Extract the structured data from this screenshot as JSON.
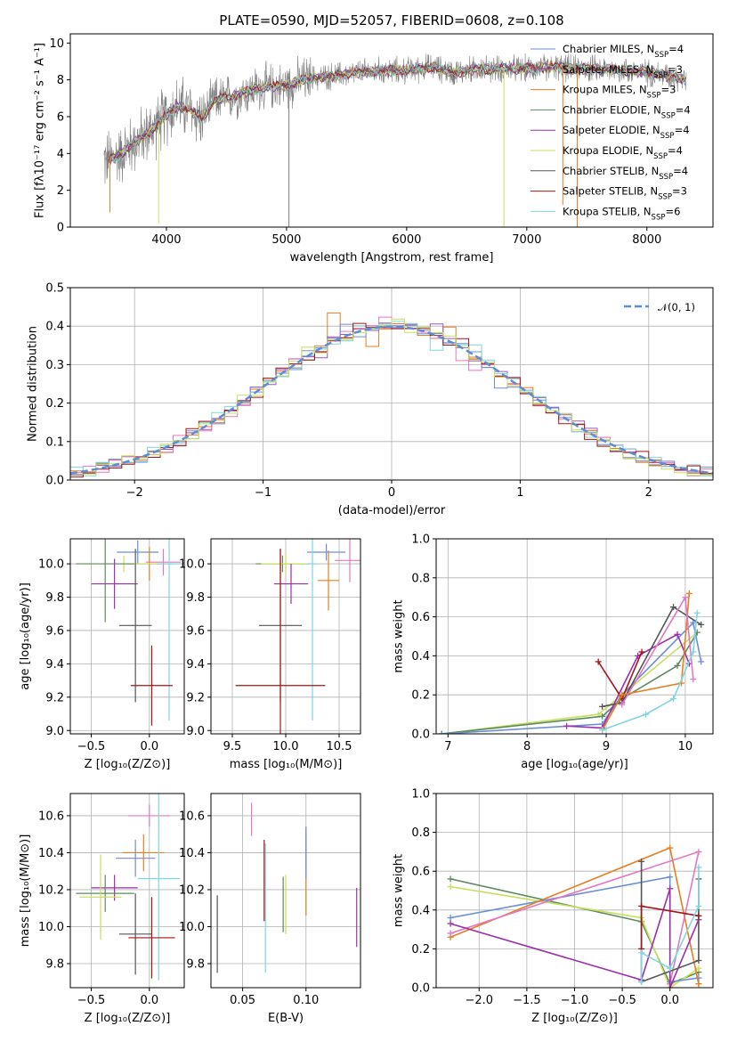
{
  "title": "PLATE=0590, MJD=52057, FIBERID=0608, z=0.108",
  "colors": {
    "miles_chabrier": "#6b8fd6",
    "miles_salpeter": "#9b59b6",
    "miles_kroupa": "#e67e22",
    "elodie_chabrier": "#5d8a5d",
    "elodie_salpeter": "#9b2fae",
    "elodie_kroupa": "#c7e05a",
    "stelib_chabrier": "#555555",
    "stelib_salpeter": "#a31515",
    "stelib_kroupa": "#7ed6df",
    "pink": "#e377c2",
    "data_gray": "#808080",
    "gaussian": "#5b8ed6"
  },
  "chart_data": [
    {
      "type": "line",
      "panel": "spectrum",
      "xlabel": "wavelength [Angstrom, rest frame]",
      "ylabel": "Flux [fλ10⁻¹⁷ erg cm⁻² s⁻¹ A⁻¹]",
      "xlim": [
        3200,
        8550
      ],
      "ylim": [
        0,
        10.5
      ],
      "xticks": [
        "4000",
        "5000",
        "6000",
        "7000",
        "8000"
      ],
      "yticks": [
        "0",
        "2",
        "4",
        "6",
        "8",
        "10"
      ],
      "grid": false,
      "legend_position": "top-right",
      "legend": [
        {
          "label": "Chabrier MILES, N",
          "sub": "SSP",
          "n": "=4",
          "color": "#6b8fd6"
        },
        {
          "label": "Salpeter MILES, N",
          "sub": "SSP",
          "n": "=3",
          "color": "#9b59b6"
        },
        {
          "label": "Kroupa MILES, N",
          "sub": "SSP",
          "n": "=3",
          "color": "#e67e22"
        },
        {
          "label": "Chabrier ELODIE, N",
          "sub": "SSP",
          "n": "=4",
          "color": "#5d8a5d"
        },
        {
          "label": "Salpeter ELODIE, N",
          "sub": "SSP",
          "n": "=4",
          "color": "#9b2fae"
        },
        {
          "label": "Kroupa ELODIE, N",
          "sub": "SSP",
          "n": "=4",
          "color": "#c7e05a"
        },
        {
          "label": "Chabrier STELIB, N",
          "sub": "SSP",
          "n": "=4",
          "color": "#555555"
        },
        {
          "label": "Salpeter STELIB, N",
          "sub": "SSP",
          "n": "=3",
          "color": "#a31515"
        },
        {
          "label": "Kroupa STELIB, N",
          "sub": "SSP",
          "n": "=6",
          "color": "#7ed6df"
        }
      ],
      "continuum_x": [
        3500,
        3600,
        3700,
        3800,
        3900,
        4000,
        4100,
        4200,
        4300,
        4400,
        4500,
        4600,
        4800,
        5000,
        5200,
        5400,
        5600,
        5800,
        6000,
        6200,
        6400,
        6600,
        6800,
        7000,
        7200,
        7400,
        7600,
        7800,
        8000,
        8200,
        8350
      ],
      "continuum_y": [
        3.6,
        3.9,
        4.4,
        4.9,
        5.4,
        6.1,
        6.6,
        6.3,
        5.9,
        6.9,
        7.0,
        7.2,
        7.6,
        7.7,
        8.1,
        8.2,
        8.4,
        8.5,
        8.5,
        8.7,
        8.4,
        8.6,
        8.6,
        8.6,
        8.7,
        8.6,
        8.6,
        8.5,
        8.4,
        8.2,
        8.0
      ],
      "spikes_down": [
        {
          "x": 3530,
          "y": 0.8,
          "color": "#e67e22"
        },
        {
          "x": 3935,
          "y": 0.2,
          "color": "#c7e05a"
        },
        {
          "x": 5020,
          "y": 0,
          "color": "#808080"
        },
        {
          "x": 6810,
          "y": 0,
          "color": "#c7e05a"
        },
        {
          "x": 7300,
          "y": 1.2,
          "color": "#e67e22"
        },
        {
          "x": 7420,
          "y": 0,
          "color": "#e67e22"
        }
      ]
    },
    {
      "type": "line",
      "panel": "residual-histogram",
      "xlabel": "(data-model)/error",
      "ylabel": "Normed distribution",
      "xlim": [
        -2.5,
        2.5
      ],
      "ylim": [
        0,
        0.5
      ],
      "xticks": [
        "−2",
        "−1",
        "0",
        "1",
        "2"
      ],
      "yticks": [
        "0.0",
        "0.1",
        "0.2",
        "0.3",
        "0.4",
        "0.5"
      ],
      "grid": true,
      "legend_position": "top-right",
      "legend": [
        {
          "label": "𝒩(0, 1)",
          "color": "#5b8ed6"
        }
      ],
      "bin_width": 0.1,
      "bin_start": -2.5,
      "histograms": [
        {
          "color": "#e67e22",
          "bumps": [
            [
              -0.45,
              0.08
            ],
            [
              -0.15,
              -0.04
            ],
            [
              0.45,
              0.03
            ]
          ]
        },
        {
          "color": "#9b59b6",
          "bumps": [
            [
              0.35,
              0.02
            ],
            [
              -0.55,
              -0.03
            ],
            [
              1.25,
              0.02
            ]
          ]
        },
        {
          "color": "#e377c2",
          "bumps": [
            [
              -0.05,
              0.02
            ],
            [
              0.6,
              -0.03
            ],
            [
              -1.25,
              -0.02
            ]
          ]
        },
        {
          "color": "#6b8fd6",
          "bumps": [
            [
              0.85,
              -0.04
            ],
            [
              -0.35,
              0.02
            ],
            [
              1.55,
              0.015
            ]
          ]
        },
        {
          "color": "#7ed6df",
          "bumps": [
            [
              0.65,
              0.035
            ],
            [
              -0.85,
              -0.02
            ],
            [
              0.35,
              -0.03
            ]
          ]
        },
        {
          "color": "#a31515",
          "bumps": [
            [
              0.55,
              0.03
            ],
            [
              -1.05,
              -0.025
            ],
            [
              -0.25,
              0.02
            ]
          ]
        },
        {
          "color": "#c7e05a",
          "bumps": [
            [
              0.05,
              0.03
            ],
            [
              -0.65,
              0.02
            ],
            [
              1.85,
              -0.015
            ]
          ]
        }
      ],
      "gaussian": {
        "mu": 0,
        "sigma": 1
      }
    },
    {
      "type": "scatter",
      "panel": "Z-age",
      "xlabel": "Z [log₁₀(Z/Z⊙)]",
      "ylabel": "age  [log₁₀(age/yr)]",
      "xlim": [
        -0.68,
        0.3
      ],
      "ylim": [
        8.98,
        10.15
      ],
      "xticks": [
        "−0.5",
        "0.0"
      ],
      "yticks": [
        "9.0",
        "9.2",
        "9.4",
        "9.6",
        "9.8",
        "10.0"
      ],
      "grid": true,
      "points": [
        {
          "x": -0.1,
          "y": 10.07,
          "xerr": 0.18,
          "yerr": 0.07,
          "color": "#6b8fd6"
        },
        {
          "x": 0.12,
          "y": 10.01,
          "xerr": 0.15,
          "yerr": 0.08,
          "color": "#e377c2"
        },
        {
          "x": 0.0,
          "y": 10.0,
          "xerr": 0.2,
          "yerr": 0.1,
          "color": "#e67e22"
        },
        {
          "x": -0.22,
          "y": 10.0,
          "xerr": 0.35,
          "yerr": 0.05,
          "color": "#c7e05a"
        },
        {
          "x": -0.38,
          "y": 10.0,
          "xerr": 0.25,
          "yerr": 0.35,
          "color": "#5d8a5d"
        },
        {
          "x": -0.3,
          "y": 9.88,
          "xerr": 0.2,
          "yerr": 0.15,
          "color": "#9b2fae"
        },
        {
          "x": 0.17,
          "y": 10.0,
          "xerr": 0.1,
          "yerr": 0.94,
          "color": "#7ed6df"
        },
        {
          "x": -0.12,
          "y": 9.63,
          "xerr": 0.14,
          "yerr": 0.46,
          "color": "#555555"
        },
        {
          "x": 0.02,
          "y": 9.27,
          "xerr": 0.18,
          "yerr": 0.24,
          "color": "#a31515"
        }
      ]
    },
    {
      "type": "scatter",
      "panel": "mass-age",
      "xlabel": "mass [log₁₀(M/M⊙)]",
      "ylabel": "",
      "xlim": [
        9.3,
        10.7
      ],
      "ylim": [
        8.98,
        10.15
      ],
      "xticks": [
        "9.5",
        "10.0",
        "10.5"
      ],
      "yticks": [
        "9.0",
        "9.2",
        "9.4",
        "9.6",
        "9.8",
        "10.0"
      ],
      "grid": true,
      "points": [
        {
          "x": 10.38,
          "y": 10.07,
          "xerr": 0.18,
          "yerr": 0.05,
          "color": "#6b8fd6"
        },
        {
          "x": 10.6,
          "y": 10.02,
          "xerr": 0.14,
          "yerr": 0.13,
          "color": "#e377c2"
        },
        {
          "x": 10.4,
          "y": 9.9,
          "xerr": 0.1,
          "yerr": 0.18,
          "color": "#e67e22"
        },
        {
          "x": 9.97,
          "y": 10.0,
          "xerr": 0.25,
          "yerr": 0.05,
          "color": "#5d8a5d"
        },
        {
          "x": 10.0,
          "y": 10.0,
          "xerr": 0.23,
          "yerr": 0.06,
          "color": "#c7e05a"
        },
        {
          "x": 10.05,
          "y": 9.88,
          "xerr": 0.16,
          "yerr": 0.12,
          "color": "#9b2fae"
        },
        {
          "x": 10.25,
          "y": 10.0,
          "xerr": 0.05,
          "yerr": 0.94,
          "color": "#7ed6df"
        },
        {
          "x": 9.95,
          "y": 9.63,
          "xerr": 0.2,
          "yerr": 0.46,
          "color": "#555555"
        },
        {
          "x": 9.95,
          "y": 9.27,
          "xerr": 0.42,
          "yerr": 0.82,
          "color": "#a31515"
        }
      ]
    },
    {
      "type": "line",
      "panel": "age-weight",
      "xlabel": "age  [log₁₀(age/yr)]",
      "ylabel": "mass weight",
      "xlim": [
        6.85,
        10.35
      ],
      "ylim": [
        0,
        1
      ],
      "xticks": [
        "7",
        "8",
        "9",
        "10"
      ],
      "yticks": [
        "0.0",
        "0.2",
        "0.4",
        "0.6",
        "0.8",
        "1.0"
      ],
      "grid": true,
      "series": [
        {
          "color": "#c7e05a",
          "x": [
            6.92,
            8.9,
            9.2,
            10.15
          ],
          "y": [
            0.0,
            0.1,
            0.2,
            0.52
          ]
        },
        {
          "color": "#5d8a5d",
          "x": [
            6.92,
            8.95,
            9.2,
            9.9,
            10.15
          ],
          "y": [
            0.0,
            0.09,
            0.18,
            0.35,
            0.52
          ]
        },
        {
          "color": "#6b8fd6",
          "x": [
            6.92,
            8.95,
            9.2,
            10.1,
            10.2
          ],
          "y": [
            0.0,
            0.05,
            0.2,
            0.57,
            0.37
          ]
        },
        {
          "color": "#9b2fae",
          "x": [
            8.5,
            8.95,
            9.4,
            9.9,
            10.05
          ],
          "y": [
            0.04,
            0.03,
            0.4,
            0.51,
            0.36
          ]
        },
        {
          "color": "#a31515",
          "x": [
            8.9,
            9.2,
            9.45
          ],
          "y": [
            0.37,
            0.18,
            0.42
          ]
        },
        {
          "color": "#555555",
          "x": [
            8.95,
            9.2,
            9.85,
            10.2
          ],
          "y": [
            0.14,
            0.16,
            0.65,
            0.56
          ]
        },
        {
          "color": "#e67e22",
          "x": [
            8.95,
            9.2,
            9.95,
            10.05
          ],
          "y": [
            0.02,
            0.2,
            0.26,
            0.72
          ]
        },
        {
          "color": "#e377c2",
          "x": [
            9.2,
            10.0,
            10.1
          ],
          "y": [
            0.15,
            0.7,
            0.28
          ]
        },
        {
          "color": "#7ed6df",
          "x": [
            8.95,
            9.5,
            9.85,
            10.1,
            10.15
          ],
          "y": [
            0.02,
            0.1,
            0.18,
            0.42,
            0.62
          ]
        }
      ]
    },
    {
      "type": "scatter",
      "panel": "Z-mass",
      "xlabel": "Z [log₁₀(Z/Z⊙)]",
      "ylabel": "mass [log₁₀(M/M⊙)]",
      "xlim": [
        -0.68,
        0.3
      ],
      "ylim": [
        9.67,
        10.72
      ],
      "xticks": [
        "−0.5",
        "0.0"
      ],
      "yticks": [
        "9.8",
        "10.0",
        "10.2",
        "10.4",
        "10.6"
      ],
      "grid": true,
      "points": [
        {
          "x": 0.0,
          "y": 10.6,
          "xerr": 0.18,
          "yerr": 0.06,
          "color": "#e377c2"
        },
        {
          "x": -0.05,
          "y": 10.4,
          "xerr": 0.18,
          "yerr": 0.1,
          "color": "#e67e22"
        },
        {
          "x": -0.12,
          "y": 10.37,
          "xerr": 0.17,
          "yerr": 0.1,
          "color": "#6b8fd6"
        },
        {
          "x": 0.08,
          "y": 10.26,
          "xerr": 0.18,
          "yerr": 0.55,
          "color": "#7ed6df"
        },
        {
          "x": -0.3,
          "y": 10.21,
          "xerr": 0.2,
          "yerr": 0.07,
          "color": "#9b2fae"
        },
        {
          "x": -0.38,
          "y": 10.18,
          "xerr": 0.25,
          "yerr": 0.1,
          "color": "#5d8a5d"
        },
        {
          "x": -0.42,
          "y": 10.16,
          "xerr": 0.18,
          "yerr": 0.23,
          "color": "#c7e05a"
        },
        {
          "x": -0.12,
          "y": 9.96,
          "xerr": 0.14,
          "yerr": 0.22,
          "color": "#555555"
        },
        {
          "x": 0.02,
          "y": 9.94,
          "xerr": 0.2,
          "yerr": 0.22,
          "color": "#a31515"
        }
      ]
    },
    {
      "type": "scatter",
      "panel": "EBV-mass",
      "xlabel": "E(B-V)",
      "ylabel": "",
      "xlim": [
        0.025,
        0.143
      ],
      "ylim": [
        9.67,
        10.72
      ],
      "xticks": [
        "0.05",
        "0.10"
      ],
      "yticks": [
        "9.8",
        "10.0",
        "10.2",
        "10.4",
        "10.6"
      ],
      "grid": true,
      "points": [
        {
          "x": 0.03,
          "y": 9.96,
          "yerr": 0.21,
          "color": "#555555"
        },
        {
          "x": 0.057,
          "y": 10.58,
          "yerr": 0.09,
          "color": "#e377c2"
        },
        {
          "x": 0.067,
          "y": 10.25,
          "yerr": 0.22,
          "color": "#a31515"
        },
        {
          "x": 0.068,
          "y": 10.1,
          "yerr": 0.35,
          "color": "#7ed6df"
        },
        {
          "x": 0.082,
          "y": 10.12,
          "yerr": 0.15,
          "color": "#5d8a5d"
        },
        {
          "x": 0.084,
          "y": 10.12,
          "yerr": 0.16,
          "color": "#c7e05a"
        },
        {
          "x": 0.1,
          "y": 10.3,
          "yerr": 0.24,
          "color": "#e67e22"
        },
        {
          "x": 0.1,
          "y": 10.4,
          "yerr": 0.14,
          "color": "#6b8fd6"
        },
        {
          "x": 0.14,
          "y": 10.05,
          "yerr": 0.16,
          "color": "#9b2fae"
        }
      ]
    },
    {
      "type": "line",
      "panel": "Z-weight",
      "xlabel": "Z [log₁₀(Z/Z⊙)]",
      "ylabel": "mass weight",
      "xlim": [
        -2.45,
        0.45
      ],
      "ylim": [
        0,
        1
      ],
      "xticks": [
        "−2.0",
        "−1.5",
        "−1.0",
        "−0.5",
        "0.0"
      ],
      "yticks": [
        "0.0",
        "0.2",
        "0.4",
        "0.6",
        "0.8",
        "1.0"
      ],
      "grid": true,
      "series": [
        {
          "color": "#5d8a5d",
          "x": [
            -2.3,
            -0.3,
            0.0,
            0.3
          ],
          "y": [
            0.56,
            0.34,
            0.02,
            0.08
          ]
        },
        {
          "color": "#c7e05a",
          "x": [
            -2.3,
            -0.3,
            0.0,
            0.3
          ],
          "y": [
            0.52,
            0.36,
            0.0,
            0.1
          ]
        },
        {
          "color": "#6b8fd6",
          "x": [
            -2.3,
            0.0,
            0.0,
            0.3
          ],
          "y": [
            0.36,
            0.57,
            0.03,
            0.05
          ]
        },
        {
          "color": "#e67e22",
          "x": [
            -2.3,
            0.0,
            0.3,
            0.3
          ],
          "y": [
            0.26,
            0.72,
            0.02,
            0.02
          ]
        },
        {
          "color": "#e377c2",
          "x": [
            -2.3,
            0.3,
            0.0
          ],
          "y": [
            0.28,
            0.7,
            0.02
          ]
        },
        {
          "color": "#9b2fae",
          "x": [
            -2.3,
            -0.3,
            0.0,
            0.0,
            0.3
          ],
          "y": [
            0.33,
            0.04,
            0.51,
            0.0,
            0.35
          ]
        },
        {
          "color": "#555555",
          "x": [
            -0.3,
            -0.3,
            0.3,
            0.3
          ],
          "y": [
            0.65,
            0.03,
            0.14,
            0.56
          ]
        },
        {
          "color": "#a31515",
          "x": [
            -0.3,
            -0.3,
            0.3
          ],
          "y": [
            0.2,
            0.42,
            0.37
          ]
        },
        {
          "color": "#7ed6df",
          "x": [
            -0.3,
            -0.3,
            0.0,
            0.3,
            0.3
          ],
          "y": [
            0.03,
            0.18,
            0.1,
            0.42,
            0.62
          ]
        }
      ]
    }
  ]
}
